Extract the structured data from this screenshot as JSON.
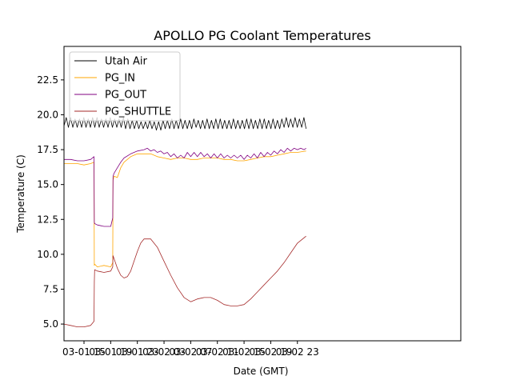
{
  "chart_data": {
    "type": "line",
    "title": "APOLLO PG Coolant Temperatures",
    "xlabel": "Date (GMT)",
    "ylabel": "Temperature (C)",
    "x_unit": "hours since 03-01 12:00 GMT",
    "xlim": [
      0,
      59.5
    ],
    "ylim": [
      3.8,
      24.9
    ],
    "grid": false,
    "legend_position": "top-left",
    "x_ticks": [
      {
        "x": 3,
        "label": "03-01 15"
      },
      {
        "x": 7,
        "label": "03-01 19"
      },
      {
        "x": 11,
        "label": "03-01 23"
      },
      {
        "x": 15,
        "label": "03-02 03"
      },
      {
        "x": 19,
        "label": "03-02 07"
      },
      {
        "x": 23,
        "label": "03-02 11"
      },
      {
        "x": 27,
        "label": "03-02 15"
      },
      {
        "x": 31,
        "label": "03-02 19"
      },
      {
        "x": 35,
        "label": "03-02 23"
      }
    ],
    "y_ticks": [
      {
        "y": 5.0,
        "label": "5.0"
      },
      {
        "y": 7.5,
        "label": "7.5"
      },
      {
        "y": 10.0,
        "label": "10.0"
      },
      {
        "y": 12.5,
        "label": "12.5"
      },
      {
        "y": 15.0,
        "label": "15.0"
      },
      {
        "y": 17.5,
        "label": "17.5"
      },
      {
        "y": 20.0,
        "label": "20.0"
      },
      {
        "y": 22.5,
        "label": "22.5"
      }
    ],
    "series": [
      {
        "name": "Utah Air",
        "color": "#000000",
        "x": [
          0.0,
          0.33,
          0.66,
          0.99,
          1.32,
          1.65,
          1.98,
          2.31,
          2.64,
          2.97,
          3.3,
          3.63,
          3.96,
          4.29,
          4.62,
          4.95,
          5.28,
          5.61,
          5.94,
          6.27,
          6.6,
          6.93,
          7.26,
          7.59,
          7.92,
          8.25,
          8.58,
          8.91,
          9.24,
          9.57,
          9.9,
          10.23,
          10.56,
          10.89,
          11.22,
          11.55,
          11.88,
          12.21,
          12.54,
          12.87,
          13.2,
          13.53,
          13.86,
          14.19,
          14.52,
          14.85,
          15.18,
          15.51,
          15.84,
          16.17,
          16.5,
          16.83,
          17.16,
          17.49,
          17.82,
          18.15,
          18.48,
          18.81,
          19.14,
          19.47,
          19.8,
          20.13,
          20.46,
          20.79,
          21.12,
          21.45,
          21.78,
          22.11,
          22.44,
          22.77,
          23.1,
          23.43,
          23.76,
          24.09,
          24.42,
          24.75,
          25.08,
          25.41,
          25.74,
          26.07,
          26.4,
          26.73,
          27.06,
          27.39,
          27.72,
          28.05,
          28.38,
          28.71,
          29.04,
          29.37,
          29.7,
          30.03,
          30.36,
          30.69,
          31.02,
          31.35,
          31.68,
          32.01,
          32.34,
          32.67,
          33.0,
          33.33,
          33.66,
          33.99,
          34.32,
          34.65,
          34.98,
          35.31,
          35.64,
          35.97,
          36.3
        ],
        "values": [
          19.2,
          19.8,
          19.1,
          19.8,
          19.1,
          19.7,
          19.1,
          19.7,
          19.1,
          19.8,
          19.1,
          19.7,
          19.1,
          19.8,
          19.1,
          19.8,
          19.1,
          19.7,
          19.1,
          19.7,
          19.1,
          19.8,
          19.1,
          19.7,
          19.1,
          19.7,
          19.1,
          19.8,
          19.0,
          19.7,
          19.0,
          19.6,
          19.0,
          19.6,
          19.0,
          19.5,
          19.0,
          19.5,
          19.0,
          19.6,
          19.0,
          19.5,
          18.9,
          19.5,
          18.9,
          19.6,
          19.0,
          19.6,
          19.0,
          19.7,
          19.0,
          19.6,
          19.0,
          19.7,
          19.0,
          19.6,
          19.0,
          19.6,
          19.0,
          19.7,
          19.1,
          19.6,
          19.0,
          19.6,
          19.0,
          19.7,
          19.0,
          19.6,
          19.0,
          19.7,
          19.0,
          19.7,
          19.0,
          19.6,
          19.0,
          19.6,
          19.0,
          19.7,
          19.0,
          19.6,
          19.0,
          19.6,
          19.0,
          19.7,
          19.0,
          19.7,
          19.0,
          19.6,
          19.0,
          19.7,
          19.0,
          19.7,
          19.0,
          19.6,
          19.0,
          19.7,
          19.0,
          19.6,
          19.0,
          19.7,
          19.1,
          19.8,
          19.1,
          19.7,
          19.1,
          19.8,
          19.1,
          19.7,
          19.1,
          19.8,
          19.0
        ]
      },
      {
        "name": "PG_IN",
        "color": "#ffa500",
        "x": [
          0,
          1,
          2,
          3,
          4,
          4.5,
          4.55,
          4.6,
          5,
          6,
          7,
          7.3,
          7.35,
          7.5,
          8,
          8.5,
          9,
          10,
          11,
          12,
          13,
          14,
          15,
          16,
          17,
          18,
          19,
          20,
          21,
          22,
          23,
          24,
          25,
          26,
          27,
          28,
          29,
          30,
          31,
          32,
          33,
          34,
          35,
          36.3
        ],
        "values": [
          16.5,
          16.5,
          16.5,
          16.4,
          16.5,
          16.6,
          9.2,
          9.3,
          9.1,
          9.2,
          9.1,
          9.4,
          15.3,
          15.6,
          15.5,
          16.2,
          16.6,
          17.0,
          17.2,
          17.2,
          17.2,
          17.0,
          16.9,
          16.8,
          16.9,
          16.9,
          16.8,
          16.8,
          16.9,
          16.9,
          16.9,
          16.8,
          16.8,
          16.7,
          16.7,
          16.8,
          16.9,
          17.0,
          17.0,
          17.1,
          17.2,
          17.3,
          17.3,
          17.4
        ]
      },
      {
        "name": "PG_OUT",
        "color": "#800080",
        "x": [
          0,
          1,
          2,
          3,
          4,
          4.5,
          4.55,
          4.6,
          5,
          6,
          7,
          7.3,
          7.35,
          7.5,
          8,
          8.5,
          9,
          10,
          11,
          12,
          12.5,
          13,
          13.5,
          14,
          14.5,
          15,
          15.5,
          16,
          16.5,
          17,
          17.5,
          18,
          18.5,
          19,
          19.5,
          20,
          20.5,
          21,
          21.5,
          22,
          22.5,
          23,
          23.5,
          24,
          24.5,
          25,
          25.5,
          26,
          26.5,
          27,
          27.5,
          28,
          28.5,
          29,
          29.5,
          30,
          30.5,
          31,
          31.5,
          32,
          32.5,
          33,
          33.5,
          34,
          34.5,
          35,
          35.5,
          36,
          36.3
        ],
        "values": [
          16.8,
          16.8,
          16.7,
          16.7,
          16.8,
          17.0,
          12.3,
          12.2,
          12.1,
          12.0,
          12.0,
          12.6,
          15.6,
          15.8,
          16.2,
          16.6,
          16.9,
          17.2,
          17.4,
          17.5,
          17.6,
          17.4,
          17.5,
          17.3,
          17.4,
          17.2,
          17.3,
          17.0,
          17.2,
          16.9,
          17.1,
          16.9,
          17.3,
          17.0,
          17.3,
          17.0,
          17.3,
          17.0,
          17.2,
          16.9,
          17.2,
          16.9,
          17.2,
          16.9,
          17.1,
          16.9,
          17.1,
          16.9,
          17.1,
          16.8,
          17.1,
          16.9,
          17.2,
          16.9,
          17.3,
          17.0,
          17.3,
          17.1,
          17.4,
          17.2,
          17.5,
          17.3,
          17.6,
          17.4,
          17.6,
          17.5,
          17.6,
          17.5,
          17.6
        ]
      },
      {
        "name": "PG_SHUTTLE",
        "color": "#a52a2a",
        "x": [
          0,
          1,
          2,
          3,
          4,
          4.5,
          4.55,
          4.6,
          5,
          6,
          7,
          7.3,
          7.35,
          7.5,
          8,
          8.5,
          9,
          9.5,
          10,
          10.5,
          11,
          11.5,
          12,
          13,
          14,
          15,
          16,
          17,
          18,
          19,
          20,
          21,
          22,
          23,
          24,
          25,
          26,
          27,
          28,
          29,
          30,
          31,
          32,
          33,
          34,
          35,
          36.3
        ],
        "values": [
          5.0,
          4.9,
          4.8,
          4.8,
          4.9,
          5.2,
          8.0,
          8.9,
          8.8,
          8.7,
          8.8,
          9.1,
          9.9,
          9.7,
          9.0,
          8.5,
          8.3,
          8.4,
          8.8,
          9.5,
          10.2,
          10.8,
          11.1,
          11.1,
          10.5,
          9.5,
          8.5,
          7.6,
          6.9,
          6.6,
          6.8,
          6.9,
          6.9,
          6.7,
          6.4,
          6.3,
          6.3,
          6.4,
          6.8,
          7.3,
          7.8,
          8.3,
          8.8,
          9.4,
          10.1,
          10.8,
          11.3
        ]
      }
    ]
  }
}
